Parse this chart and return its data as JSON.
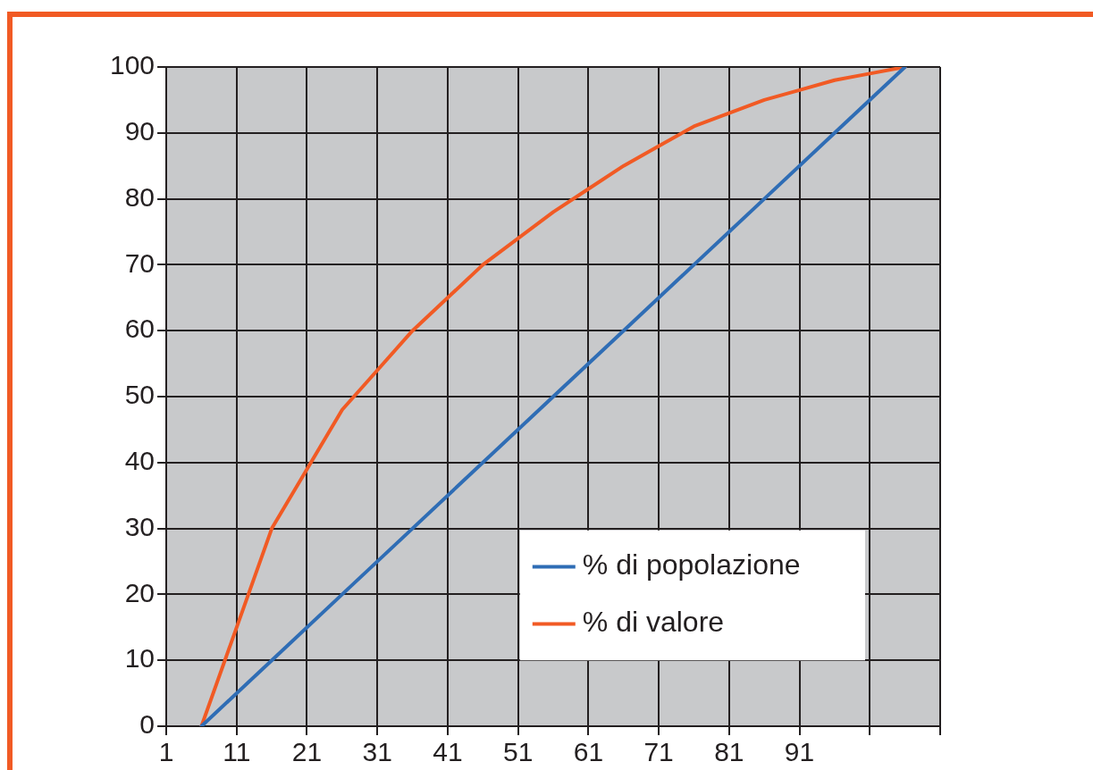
{
  "chart_data": {
    "type": "line",
    "xlim": [
      1,
      111
    ],
    "xticks": [
      1,
      11,
      21,
      31,
      41,
      51,
      61,
      71,
      81,
      91,
      {
        "value": 101,
        "label": null
      },
      {
        "value": 111,
        "label": null
      }
    ],
    "ylim": [
      0,
      100
    ],
    "yticks": [
      0,
      10,
      20,
      30,
      40,
      50,
      60,
      70,
      80,
      90,
      100
    ],
    "grid": true,
    "legend": "bottom right",
    "marker": "none",
    "line_style": "solid",
    "series": [
      {
        "name": "% di popolazione",
        "color": "#2f6db5",
        "x": [
          6,
          16,
          26,
          36,
          46,
          56,
          66,
          76,
          86,
          96,
          106
        ],
        "values": [
          0,
          10,
          20,
          30,
          40,
          50,
          60,
          70,
          80,
          90,
          100
        ]
      },
      {
        "name": "% di valore",
        "color": "#f15a24",
        "x": [
          6,
          11,
          16,
          21,
          26,
          31,
          36,
          41,
          46,
          51,
          56,
          61,
          66,
          71,
          76,
          81,
          86,
          91,
          96,
          101,
          106
        ],
        "values": [
          0,
          15,
          30,
          39,
          48,
          54,
          60,
          65,
          70,
          74,
          78,
          81.5,
          85,
          88,
          91,
          93,
          95,
          96.5,
          98,
          99,
          100
        ]
      }
    ]
  }
}
